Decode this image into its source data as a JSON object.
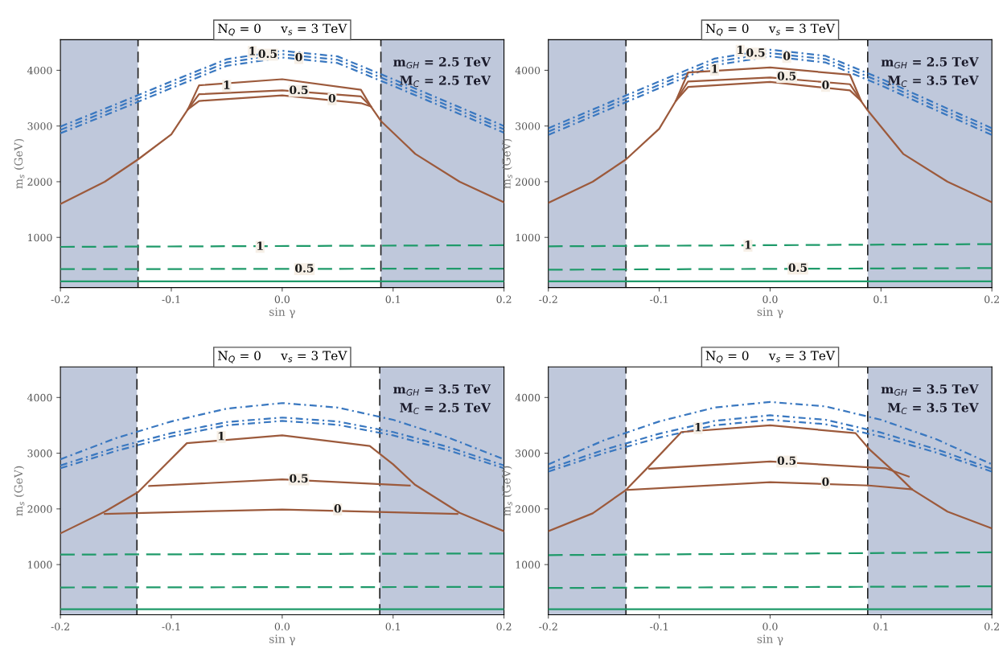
{
  "chart_data": [
    {
      "type": "line",
      "title": "N$_{Q}$ = 0     v$_{s}$ = 3 TeV",
      "xlabel": "sin γ",
      "ylabel": "m$_{s}$ (GeV)",
      "xlim": [
        -0.2,
        0.2
      ],
      "ylim": [
        100,
        4550
      ],
      "xticks": [
        {
          "value": -0.2,
          "label": "-0.2"
        },
        {
          "value": -0.1,
          "label": "-0.1"
        },
        {
          "value": 0,
          "label": "0.0"
        },
        {
          "value": 0.1,
          "label": "0.1"
        },
        {
          "value": 0.2,
          "label": "0.2"
        }
      ],
      "yticks": [
        1000,
        2000,
        3000,
        4000
      ],
      "grid": false,
      "bands": [
        {
          "axis": "x",
          "from": -0.2,
          "to": -0.13,
          "color": "#8a9bbd"
        },
        {
          "axis": "x",
          "from": 0.089,
          "to": 0.2,
          "color": "#8a9bbd"
        }
      ],
      "ref_lines": [
        {
          "axis": "x",
          "value": -0.13,
          "color": "#222222",
          "line_style": "dashed"
        },
        {
          "axis": "x",
          "value": 0.089,
          "color": "#222222",
          "line_style": "dashed"
        }
      ],
      "series": [
        {
          "color": "#3a78c0",
          "line_style": "dotted",
          "x": [
            -0.2,
            -0.15,
            -0.1,
            -0.05,
            0,
            0.05,
            0.1,
            0.15,
            0.2
          ],
          "values": [
            2990,
            3390,
            3800,
            4200,
            4350,
            4250,
            3840,
            3420,
            3000
          ]
        },
        {
          "color": "#3a78c0",
          "line_style": "dotted",
          "x": [
            -0.2,
            -0.15,
            -0.1,
            -0.05,
            0,
            0.05,
            0.1,
            0.15,
            0.2
          ],
          "values": [
            2930,
            3330,
            3740,
            4140,
            4290,
            4190,
            3780,
            3360,
            2940
          ]
        },
        {
          "color": "#3a78c0",
          "line_style": "dotted",
          "x": [
            -0.2,
            -0.15,
            -0.1,
            -0.05,
            0,
            0.05,
            0.1,
            0.15,
            0.2
          ],
          "values": [
            2870,
            3270,
            3680,
            4080,
            4230,
            4130,
            3720,
            3300,
            2880
          ]
        },
        {
          "color": "#9c5a3c",
          "line_style": "solid",
          "x": [
            -0.2,
            -0.16,
            -0.13,
            -0.1,
            -0.085,
            -0.075,
            0,
            0.071,
            0.08,
            0.089,
            0.12,
            0.16,
            0.2
          ],
          "values": [
            1600,
            2000,
            2400,
            2850,
            3300,
            3730,
            3840,
            3650,
            3350,
            3090,
            2500,
            2000,
            1630
          ]
        },
        {
          "color": "#9c5a3c",
          "line_style": "solid",
          "x": [
            -0.085,
            -0.075,
            0,
            0.071,
            0.08
          ],
          "values": [
            3300,
            3570,
            3640,
            3530,
            3350
          ]
        },
        {
          "color": "#9c5a3c",
          "line_style": "solid",
          "x": [
            -0.085,
            -0.075,
            0,
            0.071,
            0.08
          ],
          "values": [
            3300,
            3450,
            3550,
            3410,
            3350
          ]
        },
        {
          "color": "#1f9a6a",
          "line_style": "dashed",
          "x": [
            -0.2,
            0.2
          ],
          "values": [
            830,
            860
          ]
        },
        {
          "color": "#1f9a6a",
          "line_style": "dashed",
          "x": [
            -0.2,
            0.2
          ],
          "values": [
            430,
            440
          ]
        },
        {
          "color": "#1f9a6a",
          "line_style": "solid",
          "x": [
            -0.2,
            0.2
          ],
          "values": [
            210,
            210
          ]
        }
      ],
      "annotations": [
        "m$_{GH}$ = 2.5 TeV",
        "M$_{C}$ = 2.5 TeV",
        {
          "text": "1",
          "x": -0.027,
          "y": 4330
        },
        {
          "text": "0.5",
          "x": -0.013,
          "y": 4280
        },
        {
          "text": "0",
          "x": 0.015,
          "y": 4220
        },
        {
          "text": "1",
          "x": -0.05,
          "y": 3720
        },
        {
          "text": "0.5",
          "x": 0.015,
          "y": 3630
        },
        {
          "text": "0",
          "x": 0.045,
          "y": 3480
        },
        {
          "text": "1",
          "x": -0.02,
          "y": 830
        },
        {
          "text": "0.5",
          "x": 0.02,
          "y": 430
        }
      ]
    },
    {
      "type": "line",
      "title": "N$_{Q}$ = 0     v$_{s}$ = 3 TeV",
      "xlabel": "sin γ",
      "ylabel": "m$_{s}$ (GeV)",
      "xlim": [
        -0.2,
        0.2
      ],
      "ylim": [
        100,
        4550
      ],
      "xticks": [
        {
          "value": -0.2,
          "label": "-0.2"
        },
        {
          "value": -0.1,
          "label": "-0.1"
        },
        {
          "value": 0,
          "label": "0.0"
        },
        {
          "value": 0.1,
          "label": "0.1"
        },
        {
          "value": 0.2,
          "label": "0.2"
        }
      ],
      "yticks": [
        1000,
        2000,
        3000,
        4000
      ],
      "grid": false,
      "bands": [
        {
          "axis": "x",
          "from": -0.2,
          "to": -0.13,
          "color": "#8a9bbd"
        },
        {
          "axis": "x",
          "from": 0.088,
          "to": 0.2,
          "color": "#8a9bbd"
        }
      ],
      "ref_lines": [
        {
          "axis": "x",
          "value": -0.13,
          "color": "#222222",
          "line_style": "dashed"
        },
        {
          "axis": "x",
          "value": 0.088,
          "color": "#222222",
          "line_style": "dashed"
        }
      ],
      "series": [
        {
          "color": "#3a78c0",
          "line_style": "dotted",
          "x": [
            -0.2,
            -0.15,
            -0.1,
            -0.05,
            0,
            0.05,
            0.1,
            0.15,
            0.2
          ],
          "values": [
            2960,
            3380,
            3800,
            4210,
            4370,
            4260,
            3850,
            3400,
            2960
          ]
        },
        {
          "color": "#3a78c0",
          "line_style": "dotted",
          "x": [
            -0.2,
            -0.15,
            -0.1,
            -0.05,
            0,
            0.05,
            0.1,
            0.15,
            0.2
          ],
          "values": [
            2900,
            3320,
            3740,
            4150,
            4310,
            4200,
            3790,
            3340,
            2900
          ]
        },
        {
          "color": "#3a78c0",
          "line_style": "dotted",
          "x": [
            -0.2,
            -0.15,
            -0.1,
            -0.05,
            0,
            0.05,
            0.1,
            0.15,
            0.2
          ],
          "values": [
            2840,
            3260,
            3680,
            4090,
            4250,
            4140,
            3730,
            3280,
            2840
          ]
        },
        {
          "color": "#9c5a3c",
          "line_style": "solid",
          "x": [
            -0.2,
            -0.16,
            -0.13,
            -0.1,
            -0.085,
            -0.074,
            0,
            0.072,
            0.082,
            0.088,
            0.12,
            0.16,
            0.2
          ],
          "values": [
            1620,
            2000,
            2400,
            2950,
            3450,
            3960,
            4050,
            3920,
            3450,
            3280,
            2500,
            2000,
            1630
          ]
        },
        {
          "color": "#9c5a3c",
          "line_style": "solid",
          "x": [
            -0.085,
            -0.074,
            0,
            0.072,
            0.082
          ],
          "values": [
            3450,
            3800,
            3870,
            3750,
            3450
          ]
        },
        {
          "color": "#9c5a3c",
          "line_style": "solid",
          "x": [
            -0.085,
            -0.074,
            0,
            0.072,
            0.082
          ],
          "values": [
            3450,
            3700,
            3790,
            3640,
            3450
          ]
        },
        {
          "color": "#1f9a6a",
          "line_style": "dashed",
          "x": [
            -0.2,
            0.2
          ],
          "values": [
            840,
            880
          ]
        },
        {
          "color": "#1f9a6a",
          "line_style": "dashed",
          "x": [
            -0.2,
            0.2
          ],
          "values": [
            420,
            450
          ]
        },
        {
          "color": "#1f9a6a",
          "line_style": "solid",
          "x": [
            -0.2,
            0.2
          ],
          "values": [
            210,
            210
          ]
        }
      ],
      "annotations": [
        "m$_{GH}$ = 2.5 TeV",
        "M$_{C}$ = 3.5 TeV",
        {
          "text": "1",
          "x": -0.027,
          "y": 4350
        },
        {
          "text": "0.5",
          "x": -0.013,
          "y": 4300
        },
        {
          "text": "0",
          "x": 0.015,
          "y": 4240
        },
        {
          "text": "1",
          "x": -0.05,
          "y": 4010
        },
        {
          "text": "0.5",
          "x": 0.015,
          "y": 3880
        },
        {
          "text": "0",
          "x": 0.05,
          "y": 3720
        },
        {
          "text": "1",
          "x": -0.02,
          "y": 850
        },
        {
          "text": "0.5",
          "x": 0.025,
          "y": 440
        }
      ]
    },
    {
      "type": "line",
      "title": "N$_{Q}$ = 0     v$_{s}$ = 3 TeV",
      "xlabel": "sin γ",
      "ylabel": "m$_{s}$ (GeV)",
      "xlim": [
        -0.2,
        0.2
      ],
      "ylim": [
        100,
        4550
      ],
      "xticks": [
        {
          "value": -0.2,
          "label": "-0.2"
        },
        {
          "value": -0.1,
          "label": "-0.1"
        },
        {
          "value": 0,
          "label": "0.0"
        },
        {
          "value": 0.1,
          "label": "0.1"
        },
        {
          "value": 0.2,
          "label": "0.2"
        }
      ],
      "yticks": [
        1000,
        2000,
        3000,
        4000
      ],
      "grid": false,
      "bands": [
        {
          "axis": "x",
          "from": -0.2,
          "to": -0.131,
          "color": "#8a9bbd"
        },
        {
          "axis": "x",
          "from": 0.088,
          "to": 0.2,
          "color": "#8a9bbd"
        }
      ],
      "ref_lines": [
        {
          "axis": "x",
          "value": -0.131,
          "color": "#222222",
          "line_style": "dashed"
        },
        {
          "axis": "x",
          "value": 0.088,
          "color": "#222222",
          "line_style": "dashed"
        }
      ],
      "series": [
        {
          "color": "#3a78c0",
          "line_style": "dotted",
          "x": [
            -0.2,
            -0.15,
            -0.1,
            -0.05,
            0,
            0.05,
            0.1,
            0.15,
            0.2
          ],
          "values": [
            2890,
            3270,
            3570,
            3800,
            3900,
            3820,
            3600,
            3280,
            2890
          ]
        },
        {
          "color": "#3a78c0",
          "line_style": "dotted",
          "x": [
            -0.2,
            -0.15,
            -0.1,
            -0.05,
            0,
            0.05,
            0.1,
            0.15,
            0.2
          ],
          "values": [
            2780,
            3100,
            3360,
            3560,
            3640,
            3570,
            3380,
            3110,
            2780
          ]
        },
        {
          "color": "#3a78c0",
          "line_style": "dotted",
          "x": [
            -0.2,
            -0.15,
            -0.1,
            -0.05,
            0,
            0.05,
            0.1,
            0.15,
            0.2
          ],
          "values": [
            2730,
            3040,
            3300,
            3500,
            3580,
            3510,
            3320,
            3050,
            2730
          ]
        },
        {
          "color": "#9c5a3c",
          "line_style": "solid",
          "x": [
            -0.2,
            -0.16,
            -0.13,
            -0.1,
            -0.086,
            0,
            0.079,
            0.1,
            0.12,
            0.16,
            0.2
          ],
          "values": [
            1560,
            1950,
            2300,
            2900,
            3180,
            3320,
            3130,
            2800,
            2430,
            1930,
            1600
          ]
        },
        {
          "color": "#9c5a3c",
          "line_style": "solid",
          "x": [
            -0.12,
            0,
            0.115
          ],
          "values": [
            2410,
            2530,
            2420
          ]
        },
        {
          "color": "#9c5a3c",
          "line_style": "solid",
          "x": [
            -0.16,
            0,
            0.158
          ],
          "values": [
            1910,
            1990,
            1910
          ]
        },
        {
          "color": "#1f9a6a",
          "line_style": "dashed",
          "x": [
            -0.2,
            0.2
          ],
          "values": [
            1180,
            1200
          ]
        },
        {
          "color": "#1f9a6a",
          "line_style": "dashed",
          "x": [
            -0.2,
            0.2
          ],
          "values": [
            590,
            600
          ]
        },
        {
          "color": "#1f9a6a",
          "line_style": "solid",
          "x": [
            -0.2,
            0.2
          ],
          "values": [
            200,
            200
          ]
        }
      ],
      "annotations": [
        "m$_{GH}$ = 3.5 TeV",
        "M$_{C}$ = 2.5 TeV",
        {
          "text": "1",
          "x": -0.055,
          "y": 3290
        },
        {
          "text": "0.5",
          "x": 0.015,
          "y": 2530
        },
        {
          "text": "0",
          "x": 0.05,
          "y": 1990
        }
      ]
    },
    {
      "type": "line",
      "title": "N$_{Q}$ = 0     v$_{s}$ = 3 TeV",
      "xlabel": "sin γ",
      "ylabel": "m$_{s}$ (GeV)",
      "xlim": [
        -0.2,
        0.2
      ],
      "ylim": [
        100,
        4550
      ],
      "xticks": [
        {
          "value": -0.2,
          "label": "-0.2"
        },
        {
          "value": -0.1,
          "label": "-0.1"
        },
        {
          "value": 0,
          "label": "0.0"
        },
        {
          "value": 0.1,
          "label": "0.1"
        },
        {
          "value": 0.2,
          "label": "0.2"
        }
      ],
      "yticks": [
        1000,
        2000,
        3000,
        4000
      ],
      "grid": false,
      "bands": [
        {
          "axis": "x",
          "from": -0.2,
          "to": -0.13,
          "color": "#8a9bbd"
        },
        {
          "axis": "x",
          "from": 0.088,
          "to": 0.2,
          "color": "#8a9bbd"
        }
      ],
      "ref_lines": [
        {
          "axis": "x",
          "value": -0.13,
          "color": "#222222",
          "line_style": "dashed"
        },
        {
          "axis": "x",
          "value": 0.088,
          "color": "#222222",
          "line_style": "dashed"
        }
      ],
      "series": [
        {
          "color": "#3a78c0",
          "line_style": "dotted",
          "x": [
            -0.2,
            -0.15,
            -0.1,
            -0.05,
            0,
            0.05,
            0.1,
            0.15,
            0.2
          ],
          "values": [
            2800,
            3230,
            3570,
            3820,
            3920,
            3840,
            3600,
            3250,
            2800
          ]
        },
        {
          "color": "#3a78c0",
          "line_style": "dotted",
          "x": [
            -0.2,
            -0.15,
            -0.1,
            -0.05,
            0,
            0.05,
            0.1,
            0.15,
            0.2
          ],
          "values": [
            2720,
            3060,
            3350,
            3580,
            3680,
            3600,
            3370,
            3070,
            2720
          ]
        },
        {
          "color": "#3a78c0",
          "line_style": "dotted",
          "x": [
            -0.2,
            -0.15,
            -0.1,
            -0.05,
            0,
            0.05,
            0.1,
            0.15,
            0.2
          ],
          "values": [
            2670,
            3000,
            3280,
            3500,
            3600,
            3520,
            3300,
            3010,
            2670
          ]
        },
        {
          "color": "#9c5a3c",
          "line_style": "solid",
          "x": [
            -0.2,
            -0.16,
            -0.13,
            -0.11,
            -0.08,
            0,
            0.077,
            0.09,
            0.11,
            0.128,
            0.16,
            0.2
          ],
          "values": [
            1600,
            1920,
            2340,
            2750,
            3380,
            3500,
            3360,
            3060,
            2700,
            2350,
            1950,
            1650
          ]
        },
        {
          "color": "#9c5a3c",
          "line_style": "solid",
          "x": [
            -0.109,
            0,
            0.104,
            0.125
          ],
          "values": [
            2720,
            2850,
            2730,
            2580
          ]
        },
        {
          "color": "#9c5a3c",
          "line_style": "solid",
          "x": [
            -0.13,
            0,
            0.089,
            0.128
          ],
          "values": [
            2340,
            2480,
            2420,
            2350
          ]
        },
        {
          "color": "#1f9a6a",
          "line_style": "dashed",
          "x": [
            -0.2,
            0.2
          ],
          "values": [
            1170,
            1220
          ]
        },
        {
          "color": "#1f9a6a",
          "line_style": "dashed",
          "x": [
            -0.2,
            0.2
          ],
          "values": [
            580,
            610
          ]
        },
        {
          "color": "#1f9a6a",
          "line_style": "solid",
          "x": [
            -0.2,
            0.2
          ],
          "values": [
            200,
            200
          ]
        }
      ],
      "annotations": [
        "m$_{GH}$ = 3.5 TeV",
        "M$_{C}$ = 3.5 TeV",
        {
          "text": "1",
          "x": -0.065,
          "y": 3450
        },
        {
          "text": "0.5",
          "x": 0.015,
          "y": 2850
        },
        {
          "text": "0",
          "x": 0.05,
          "y": 2470
        }
      ]
    }
  ]
}
